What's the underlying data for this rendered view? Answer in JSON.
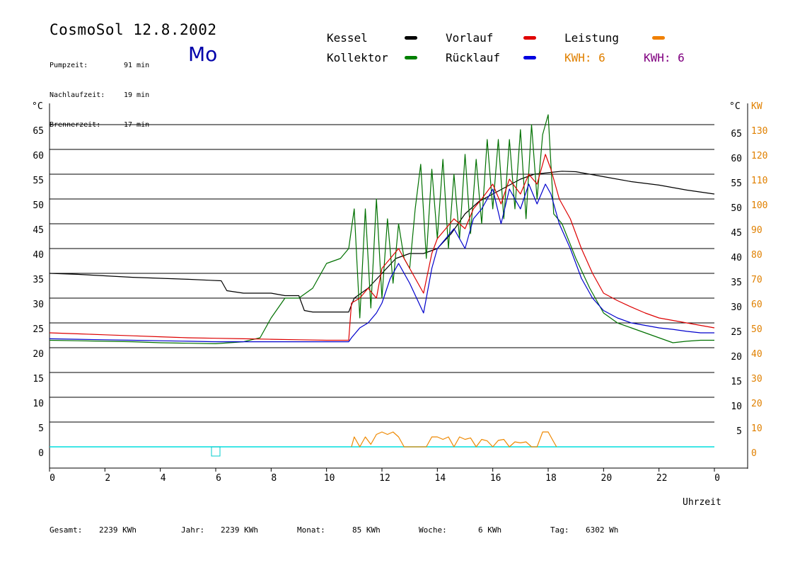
{
  "header": {
    "title": "CosmoSol 12.8.2002",
    "day": "Mo",
    "stats": [
      {
        "label": "Pumpzeit:",
        "value": "91 min"
      },
      {
        "label": "Nachlaufzeit:",
        "value": "19 min"
      },
      {
        "label": "Brennerzeit:",
        "value": "17 min"
      }
    ]
  },
  "legend": {
    "items": [
      {
        "label": "Kessel",
        "color": "#000000"
      },
      {
        "label": "Kollektor",
        "color": "#008000"
      },
      {
        "label": "Vorlauf",
        "color": "#e00000"
      },
      {
        "label": "Rücklauf",
        "color": "#0000e0"
      },
      {
        "label": "Leistung",
        "color": "#f08000"
      }
    ],
    "kwh_left": "KWH: 6",
    "kwh_left_color": "#e08000",
    "kwh_right": "KWH: 6",
    "kwh_right_color": "#800080"
  },
  "footer": [
    {
      "label": "Gesamt:",
      "value": "2239 KWh"
    },
    {
      "label": "Jahr:",
      "value": "2239 KWh"
    },
    {
      "label": "Monat:",
      "value": "85 KWh"
    },
    {
      "label": "Woche:",
      "value": "6 KWh"
    },
    {
      "label": "Tag:",
      "value": "6302 Wh"
    }
  ],
  "chart_data": {
    "type": "line",
    "title": "CosmoSol 12.8.2002",
    "xlabel": "Uhrzeit",
    "ylabel_left": "°C",
    "ylabel_right": "°C",
    "ylabel_right2": "KW",
    "xlim": [
      0,
      24
    ],
    "ylim": [
      -4,
      70
    ],
    "grid": true,
    "x_ticks": [
      "0",
      "2",
      "4",
      "6",
      "8",
      "10",
      "12",
      "14",
      "16",
      "18",
      "20",
      "22",
      "0"
    ],
    "y_ticks_left": [
      "0",
      "5",
      "10",
      "15",
      "20",
      "25",
      "30",
      "35",
      "40",
      "45",
      "50",
      "55",
      "60",
      "65"
    ],
    "y_ticks_right": [
      "5",
      "10",
      "15",
      "20",
      "25",
      "30",
      "35",
      "40",
      "45",
      "50",
      "55",
      "60",
      "65"
    ],
    "y_ticks_kw": [
      "0",
      "10",
      "20",
      "30",
      "40",
      "50",
      "60",
      "70",
      "80",
      "90",
      "100",
      "110",
      "120",
      "130"
    ],
    "series": [
      {
        "name": "Kessel",
        "color": "#000000",
        "x": [
          0,
          1,
          2,
          3,
          4,
          5,
          5.8,
          6.2,
          6.4,
          7,
          8,
          8.5,
          9,
          9.2,
          9.5,
          10,
          10.5,
          10.8,
          11,
          11.5,
          12,
          12.5,
          13,
          13.5,
          14,
          14.5,
          15,
          15.5,
          16,
          16.5,
          17,
          17.5,
          18,
          18.5,
          19,
          19.5,
          20,
          21,
          22,
          23,
          24
        ],
        "y": [
          35,
          34.8,
          34.5,
          34.2,
          34,
          33.8,
          33.6,
          33.5,
          31.5,
          31,
          31,
          30.5,
          30.5,
          27.5,
          27.2,
          27.2,
          27.2,
          27.2,
          30,
          32,
          35,
          38,
          39,
          39,
          40,
          43,
          47,
          49.5,
          51,
          52.5,
          54,
          55,
          55.3,
          55.6,
          55.5,
          55,
          54.5,
          53.5,
          52.8,
          51.8,
          51
        ]
      },
      {
        "name": "Kollektor",
        "color": "#007000",
        "x": [
          0,
          1,
          2,
          3,
          4,
          5,
          6,
          7,
          7.6,
          8,
          8.5,
          9,
          9.5,
          10,
          10.5,
          10.8,
          11,
          11.2,
          11.4,
          11.6,
          11.8,
          12,
          12.2,
          12.4,
          12.6,
          12.8,
          13,
          13.2,
          13.4,
          13.6,
          13.8,
          14,
          14.2,
          14.4,
          14.6,
          14.8,
          15,
          15.2,
          15.4,
          15.6,
          15.8,
          16,
          16.2,
          16.4,
          16.6,
          16.8,
          17,
          17.2,
          17.4,
          17.6,
          17.8,
          18,
          18.2,
          18.5,
          19,
          19.5,
          20,
          20.5,
          21,
          21.5,
          22,
          22.5,
          23,
          23.5,
          24
        ],
        "y": [
          21.5,
          21.4,
          21.3,
          21.2,
          21,
          20.9,
          20.8,
          21.2,
          22,
          26,
          30,
          30,
          32,
          37,
          38,
          40,
          48,
          26,
          48,
          28,
          50,
          30,
          46,
          33,
          45,
          38,
          36,
          48,
          57,
          38,
          56,
          42,
          58,
          40,
          55,
          42,
          59,
          43,
          58,
          45,
          62,
          48,
          62,
          46,
          62,
          48,
          64,
          46,
          65,
          50,
          63,
          67,
          47,
          45,
          38,
          32,
          27,
          25,
          24,
          23,
          22,
          21,
          21.3,
          21.5,
          21.5
        ]
      },
      {
        "name": "Vorlauf",
        "color": "#dd0000",
        "x": [
          0,
          1,
          2,
          3,
          4,
          5,
          6,
          7,
          8,
          9,
          10,
          10.8,
          10.9,
          11.2,
          11.5,
          11.8,
          12,
          12.3,
          12.6,
          13,
          13.5,
          13.8,
          14,
          14.3,
          14.6,
          15,
          15.3,
          15.6,
          16,
          16.3,
          16.6,
          17,
          17.3,
          17.6,
          17.9,
          18.1,
          18.4,
          18.8,
          19.2,
          19.6,
          20,
          20.5,
          21,
          21.5,
          22,
          22.5,
          23,
          23.5,
          24
        ],
        "y": [
          23,
          22.8,
          22.6,
          22.4,
          22.2,
          22,
          21.9,
          21.8,
          21.7,
          21.6,
          21.5,
          21.5,
          29,
          30,
          32,
          30,
          36,
          38,
          40,
          36,
          31,
          39,
          42,
          44,
          46,
          44,
          48,
          50,
          53,
          49,
          54,
          51,
          55,
          53,
          59,
          56,
          50,
          46,
          40,
          35,
          31,
          29.5,
          28.2,
          27,
          26,
          25.5,
          25,
          24.5,
          24
        ]
      },
      {
        "name": "Rücklauf",
        "color": "#0000cc",
        "x": [
          0,
          1,
          2,
          3,
          4,
          5,
          6,
          7,
          8,
          9,
          10,
          10.8,
          10.9,
          11.2,
          11.5,
          11.8,
          12,
          12.3,
          12.6,
          13,
          13.5,
          13.8,
          14,
          14.3,
          14.6,
          15,
          15.3,
          15.6,
          16,
          16.3,
          16.6,
          17,
          17.3,
          17.6,
          17.9,
          18.1,
          18.4,
          18.8,
          19.2,
          19.6,
          20,
          20.5,
          21,
          21.5,
          22,
          22.5,
          23,
          23.5,
          24
        ],
        "y": [
          21.8,
          21.7,
          21.6,
          21.5,
          21.4,
          21.3,
          21.2,
          21.2,
          21.2,
          21.2,
          21.2,
          21.2,
          22,
          24,
          25,
          27,
          29,
          34,
          37,
          33,
          27,
          36,
          40,
          42,
          44,
          40,
          46,
          48,
          52,
          45,
          52,
          48,
          53,
          49,
          53,
          51,
          45,
          40,
          34,
          30,
          27.5,
          26,
          25,
          24.5,
          24,
          23.7,
          23.3,
          23,
          23
        ]
      },
      {
        "name": "Leistung",
        "color": "#ee8800",
        "x": [
          10.9,
          11,
          11.2,
          11.4,
          11.6,
          11.8,
          12,
          12.2,
          12.4,
          12.6,
          12.8,
          13.6,
          13.8,
          14,
          14.2,
          14.4,
          14.6,
          14.8,
          15,
          15.2,
          15.4,
          15.6,
          15.8,
          16,
          16.2,
          16.4,
          16.6,
          16.8,
          17,
          17.2,
          17.4,
          17.6,
          17.8,
          18,
          18.2,
          18.3
        ],
        "y": [
          0,
          2,
          0,
          2,
          0.5,
          2.5,
          3,
          2.5,
          3,
          2,
          0,
          0,
          2,
          2,
          1.5,
          2,
          0,
          2,
          1.5,
          1.8,
          0,
          1.5,
          1.2,
          0,
          1.3,
          1.5,
          0,
          1,
          0.8,
          1,
          0,
          0,
          3,
          3,
          1,
          0
        ]
      }
    ],
    "extra_marker": {
      "x": 6,
      "y": -1,
      "color": "#00cccc"
    },
    "baseline": {
      "y": 0,
      "color": "#00dddd"
    }
  }
}
